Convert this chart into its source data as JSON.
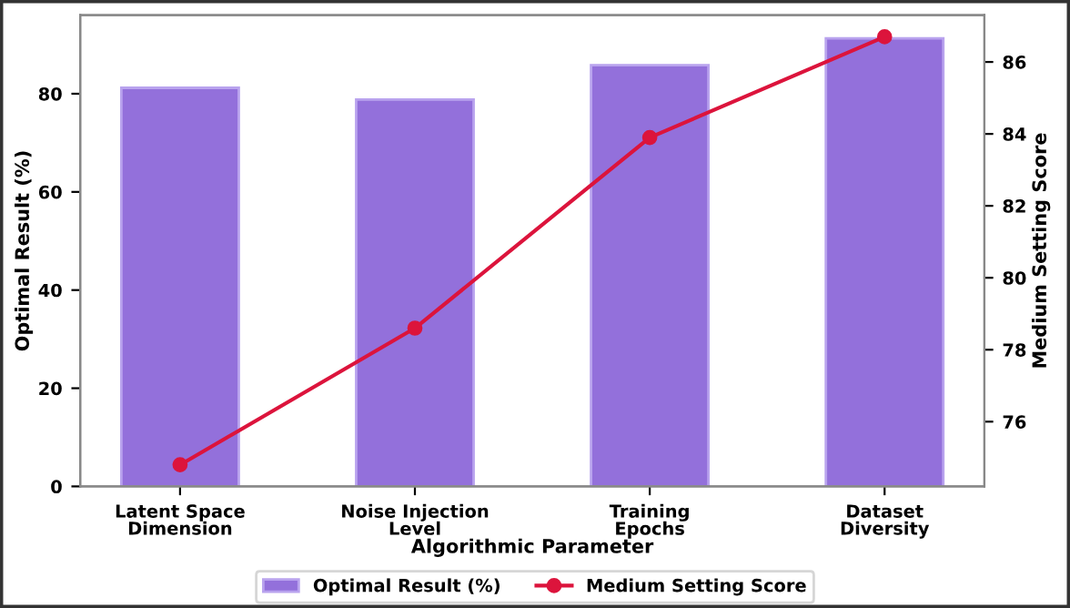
{
  "chart_data": {
    "type": "bar",
    "xlabel": "Algorithmic Parameter",
    "ylabel": "Optimal Result (%)",
    "y2label": "Medium Setting Score",
    "categories": [
      "Latent Space\nDimension",
      "Noise Injection\nLevel",
      "Training\nEpochs",
      "Dataset\nDiversity"
    ],
    "series": [
      {
        "name": "Optimal Result (%)",
        "color": "#9370db",
        "values": [
          81.2,
          78.8,
          85.8,
          91.3
        ]
      },
      {
        "name": "Medium Setting Score",
        "type": "line",
        "axis": "y2",
        "color": "#dc143c",
        "marker": "circle",
        "values": [
          74.8,
          78.6,
          83.9,
          86.7
        ]
      }
    ],
    "ylim": [
      0,
      96
    ],
    "yticks": [
      0,
      20,
      40,
      60,
      80
    ],
    "y2lim": [
      74.2,
      87.3
    ],
    "y2ticks": [
      76,
      78,
      80,
      82,
      84,
      86
    ],
    "legend": "bottom",
    "grid": false
  }
}
